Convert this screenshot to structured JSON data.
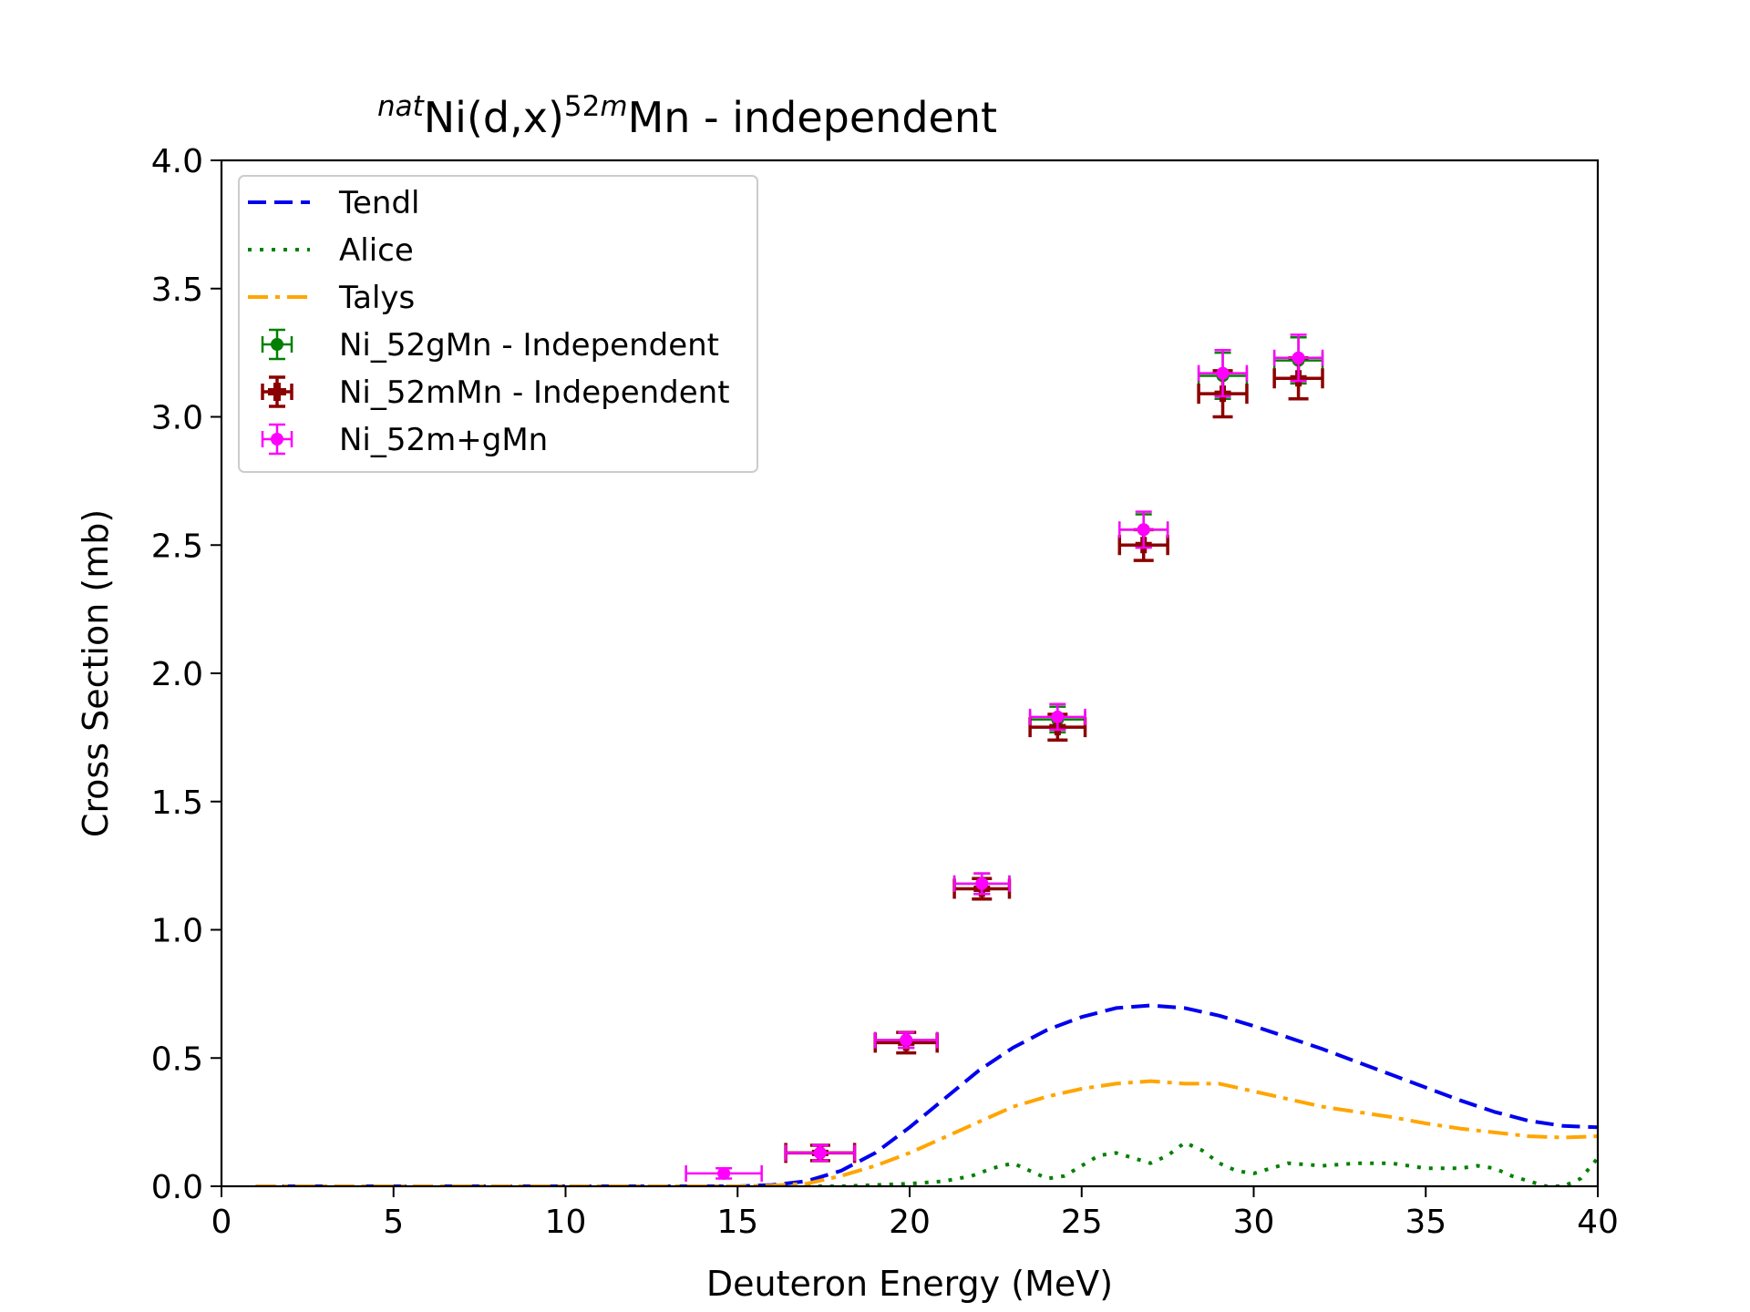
{
  "chart_data": {
    "type": "scatter",
    "title": {
      "pre_sup": "nat",
      "element": "Ni(d,x)",
      "mid_sup": "52",
      "mid_sup_italic": "m",
      "tail": "Mn - independent"
    },
    "xlabel": "Deuteron Energy (MeV)",
    "ylabel": "Cross Section (mb)",
    "xlim": [
      0,
      40
    ],
    "ylim": [
      0,
      4.0
    ],
    "x_ticks": [
      "0",
      "5",
      "10",
      "15",
      "20",
      "25",
      "30",
      "35",
      "40"
    ],
    "y_ticks": [
      "0.0",
      "0.5",
      "1.0",
      "1.5",
      "2.0",
      "2.5",
      "3.0",
      "3.5",
      "4.0"
    ],
    "grid": false,
    "legend_position": "top-left",
    "curves": [
      {
        "name": "Tendl",
        "color": "#0000ee",
        "style": "dashed",
        "x": [
          1,
          5,
          10,
          14,
          15,
          16,
          17,
          18,
          19,
          20,
          21,
          22,
          23,
          24,
          25,
          26,
          27,
          28,
          29,
          30,
          31,
          32,
          33,
          34,
          35,
          36,
          37,
          38,
          39,
          40
        ],
        "y": [
          0.0,
          0.0,
          0.0,
          0.0,
          0.0,
          0.005,
          0.02,
          0.06,
          0.13,
          0.23,
          0.34,
          0.45,
          0.54,
          0.61,
          0.66,
          0.695,
          0.705,
          0.695,
          0.665,
          0.625,
          0.58,
          0.535,
          0.485,
          0.435,
          0.385,
          0.335,
          0.29,
          0.255,
          0.235,
          0.23
        ]
      },
      {
        "name": "Alice",
        "color": "#008000",
        "style": "dotted",
        "x": [
          17,
          18,
          19,
          20,
          21,
          21.8,
          22.4,
          23,
          23.5,
          24,
          24.5,
          25,
          25.5,
          26,
          26.5,
          27,
          27.5,
          28,
          28.5,
          29,
          29.5,
          30,
          30.5,
          31,
          32,
          33,
          34,
          35,
          36,
          36.5,
          37,
          37.5,
          38,
          38.5,
          39,
          39.5,
          40
        ],
        "y": [
          0.0,
          0.0,
          0.005,
          0.01,
          0.02,
          0.04,
          0.07,
          0.09,
          0.06,
          0.03,
          0.04,
          0.08,
          0.12,
          0.13,
          0.11,
          0.09,
          0.12,
          0.17,
          0.14,
          0.09,
          0.06,
          0.05,
          0.07,
          0.09,
          0.08,
          0.09,
          0.09,
          0.07,
          0.07,
          0.08,
          0.07,
          0.04,
          0.02,
          0.0,
          0.0,
          0.03,
          0.11
        ]
      },
      {
        "name": "Talys",
        "color": "#ffa500",
        "style": "dashdot",
        "x": [
          1,
          5,
          10,
          15,
          16,
          17,
          18,
          19,
          20,
          21,
          22,
          23,
          24,
          25,
          26,
          27,
          28,
          29,
          30,
          31,
          32,
          33,
          34,
          35,
          36,
          37,
          38,
          39,
          40
        ],
        "y": [
          0.0,
          0.0,
          0.0,
          0.0,
          0.003,
          0.01,
          0.04,
          0.08,
          0.13,
          0.19,
          0.25,
          0.31,
          0.35,
          0.38,
          0.4,
          0.41,
          0.4,
          0.4,
          0.37,
          0.34,
          0.31,
          0.29,
          0.27,
          0.245,
          0.225,
          0.21,
          0.195,
          0.19,
          0.195
        ]
      }
    ],
    "series": [
      {
        "name": "Ni_52gMn - Independent",
        "color": "#008000",
        "marker": "circle",
        "x": [
          17.4,
          19.9,
          22.1,
          24.3,
          26.8,
          29.1,
          31.3
        ],
        "xerr": [
          1.0,
          0.9,
          0.8,
          0.8,
          0.7,
          0.7,
          0.7
        ],
        "y": [
          0.13,
          0.57,
          1.18,
          1.82,
          2.56,
          3.16,
          3.22
        ],
        "yerr": [
          0.03,
          0.03,
          0.04,
          0.05,
          0.06,
          0.09,
          0.09
        ]
      },
      {
        "name": "Ni_52mMn - Independent",
        "color": "#8b0000",
        "marker": "plus",
        "x": [
          17.4,
          19.9,
          22.1,
          24.3,
          26.8,
          29.1,
          31.3
        ],
        "xerr": [
          1.0,
          0.9,
          0.8,
          0.8,
          0.7,
          0.7,
          0.7
        ],
        "y": [
          0.13,
          0.56,
          1.16,
          1.79,
          2.5,
          3.09,
          3.15
        ],
        "yerr": [
          0.03,
          0.04,
          0.04,
          0.05,
          0.06,
          0.09,
          0.08
        ]
      },
      {
        "name": "Ni_52m+gMn",
        "color": "#ff00ff",
        "marker": "circle",
        "x": [
          14.6,
          17.4,
          19.9,
          22.1,
          24.3,
          26.8,
          29.1,
          31.3
        ],
        "xerr": [
          1.1,
          1.0,
          0.9,
          0.8,
          0.8,
          0.7,
          0.7,
          0.7
        ],
        "y": [
          0.05,
          0.13,
          0.57,
          1.18,
          1.83,
          2.56,
          3.17,
          3.23
        ],
        "yerr": [
          0.02,
          0.03,
          0.03,
          0.04,
          0.05,
          0.07,
          0.09,
          0.09
        ]
      }
    ]
  }
}
